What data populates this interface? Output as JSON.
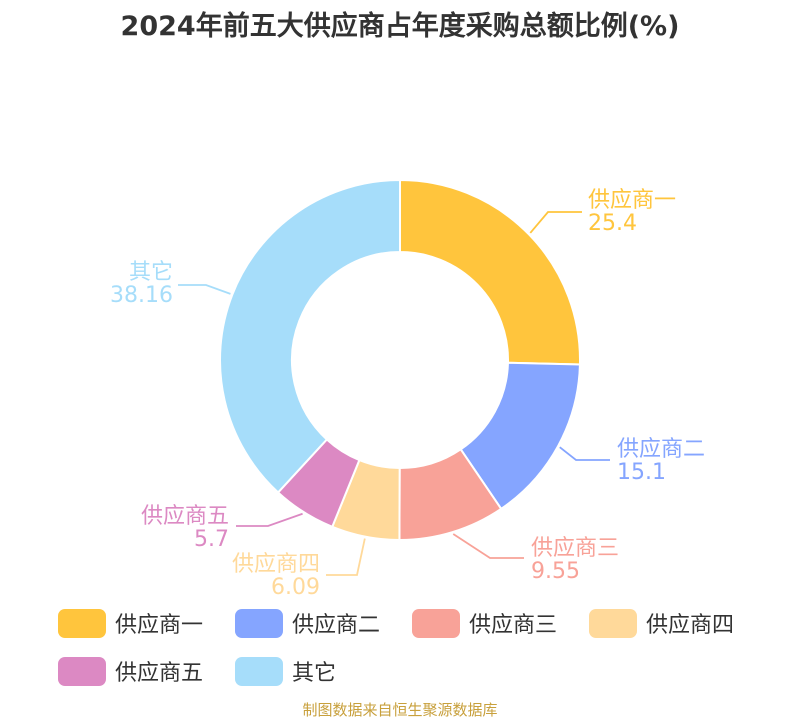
{
  "title": "2024年前五大供应商占年度采购总额比例(%)",
  "source": "制图数据来自恒生聚源数据库",
  "chart_data": {
    "type": "pie",
    "donut": true,
    "title": "2024年前五大供应商占年度采购总额比例(%)",
    "legend_position": "bottom",
    "categories": [
      "供应商一",
      "供应商二",
      "供应商三",
      "供应商四",
      "供应商五",
      "其它"
    ],
    "values": [
      25.4,
      15.1,
      9.55,
      6.09,
      5.7,
      38.16
    ],
    "value_labels": [
      "25.4",
      "15.1",
      "9.55",
      "6.09",
      "5.7",
      "38.16"
    ],
    "colors": [
      "#ffc53d",
      "#85a5ff",
      "#f8a298",
      "#ffd99a",
      "#dc89c3",
      "#a6ddfa"
    ]
  }
}
